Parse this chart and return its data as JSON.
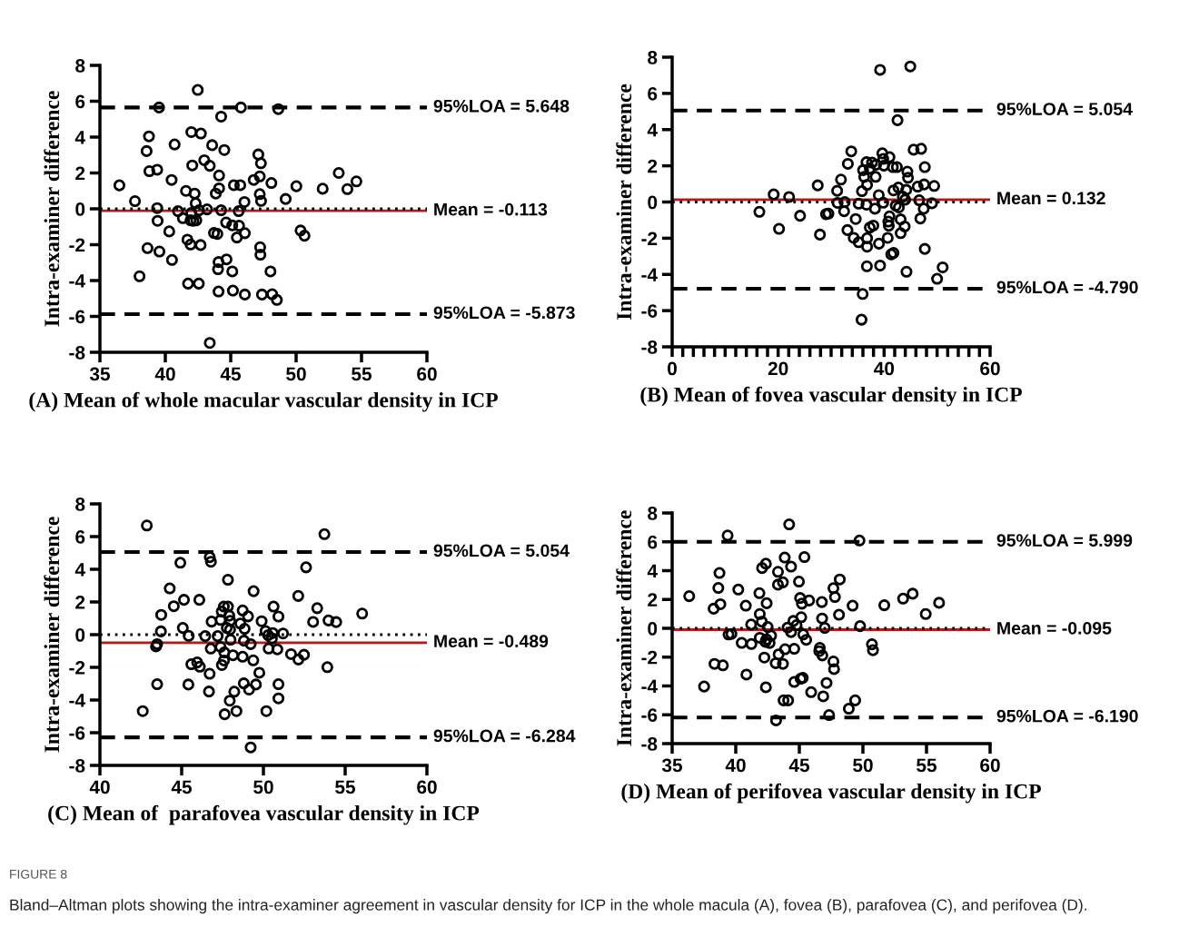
{
  "chart_data": [
    {
      "type": "scatter",
      "xlabel": "(A) Mean of whole macular vascular density in ICP",
      "ylabel": "Intra-examiner difference",
      "xlim": [
        35,
        60
      ],
      "ylim": [
        -8,
        8
      ],
      "xticks": [
        35,
        40,
        45,
        50,
        55,
        60
      ],
      "yticks": [
        -8,
        -6,
        -4,
        -2,
        0,
        2,
        4,
        6,
        8
      ],
      "marker": "circle",
      "grid": false,
      "legend": false,
      "annotations": [
        "FIGURE 8",
        "Bland–Altman plots showing the intra-examiner agreement in vascular density for ICP in the whole macula (A), fovea (B), parafovea (C), and perifovea (D)."
      ],
      "ref_lines": [
        {
          "axis": "y",
          "value": 5.648,
          "label": "95%LOA = 5.648",
          "color": "#000000",
          "line_style": "dashed"
        },
        {
          "axis": "y",
          "value": -0.113,
          "label": "Mean = -0.113",
          "color": "#b01c1c",
          "line_style": "solid"
        },
        {
          "axis": "y",
          "value": 0,
          "label": null,
          "color": "#000000",
          "line_style": "dotted"
        },
        {
          "axis": "y",
          "value": -5.873,
          "label": "95%LOA = -5.873",
          "color": "#000000",
          "line_style": "dashed"
        }
      ],
      "series": [
        {
          "color": "#000000",
          "x": [
            36.49,
            37.68,
            38.03,
            38.64,
            38.75,
            38.57,
            38.78,
            39.38,
            39.52,
            39.55,
            39.38,
            39.41,
            40.3,
            40.51,
            40.48,
            40.71,
            40.97,
            41.34,
            41.58,
            41.69,
            41.93,
            41.74,
            41.99,
            42.06,
            42.24,
            42.32,
            41.93,
            42.14,
            42.37,
            41.99,
            42.48,
            42.58,
            42.72,
            42.7,
            42.56,
            42.98,
            43.19,
            43.4,
            43.58,
            43.4,
            43.72,
            43.98,
            44.11,
            43.86,
            44.11,
            44.27,
            44.27,
            44.51,
            44.07,
            44.03,
            44.07,
            44.68,
            44.65,
            45.12,
            45.12,
            45.17,
            45.24,
            45.73,
            45.64,
            45.47,
            45.61,
            45.78,
            46.05,
            46.08,
            46.08,
            46.76,
            47.11,
            47.31,
            47.22,
            47.22,
            47.32,
            47.25,
            47.27,
            47.39,
            48.11,
            48.04,
            48.17,
            48.53,
            48.64,
            49.2,
            50.02,
            50.34,
            50.64,
            52.03,
            53.26,
            53.92,
            54.61
          ],
          "values": [
            1.31,
            0.43,
            -3.76,
            -2.19,
            4.04,
            3.22,
            2.1,
            2.18,
            5.65,
            -2.38,
            0.04,
            -0.67,
            -1.26,
            -2.85,
            1.61,
            3.59,
            -0.13,
            -0.52,
            1.0,
            -1.72,
            -1.99,
            -4.17,
            4.28,
            2.42,
            0.85,
            0.31,
            -0.64,
            -0.67,
            -0.64,
            -0.23,
            6.63,
            -0.08,
            4.2,
            -2.02,
            -4.17,
            2.71,
            -0.03,
            2.4,
            3.55,
            -7.48,
            -1.35,
            -1.4,
            1.86,
            0.85,
            1.14,
            -0.08,
            5.14,
            3.28,
            -2.97,
            -3.37,
            -4.61,
            -2.82,
            -0.76,
            -0.92,
            -3.49,
            -4.56,
            1.32,
            1.32,
            -0.94,
            -1.6,
            -0.13,
            5.65,
            0.38,
            -1.36,
            -4.78,
            1.61,
            3.03,
            2.54,
            1.81,
            0.82,
            0.44,
            -2.14,
            -2.56,
            -4.78,
            1.44,
            -3.49,
            -4.76,
            -5.08,
            5.56,
            0.55,
            1.26,
            -1.21,
            -1.5,
            1.12,
            2.0,
            1.1,
            1.53
          ]
        }
      ]
    },
    {
      "type": "scatter",
      "xlabel": "(B) Mean of fovea vascular density in ICP",
      "ylabel": "Intra-examiner difference",
      "xlim": [
        0,
        60
      ],
      "ylim": [
        -8,
        8
      ],
      "xticks": [
        0,
        {
          "value": 2,
          "label": null
        },
        {
          "value": 4,
          "label": null
        },
        {
          "value": 6,
          "label": null
        },
        {
          "value": 8,
          "label": null
        },
        {
          "value": 10,
          "label": null
        },
        {
          "value": 12,
          "label": null
        },
        {
          "value": 14,
          "label": null
        },
        {
          "value": 16,
          "label": null
        },
        {
          "value": 18,
          "label": null
        },
        20,
        {
          "value": 22,
          "label": null
        },
        {
          "value": 24,
          "label": null
        },
        {
          "value": 26,
          "label": null
        },
        {
          "value": 28,
          "label": null
        },
        {
          "value": 30,
          "label": null
        },
        {
          "value": 32,
          "label": null
        },
        {
          "value": 34,
          "label": null
        },
        {
          "value": 36,
          "label": null
        },
        {
          "value": 38,
          "label": null
        },
        40,
        {
          "value": 42,
          "label": null
        },
        {
          "value": 44,
          "label": null
        },
        {
          "value": 46,
          "label": null
        },
        {
          "value": 48,
          "label": null
        },
        {
          "value": 50,
          "label": null
        },
        {
          "value": 52,
          "label": null
        },
        {
          "value": 54,
          "label": null
        },
        {
          "value": 56,
          "label": null
        },
        {
          "value": 58,
          "label": null
        },
        60
      ],
      "yticks": [
        -8,
        -6,
        -4,
        -2,
        0,
        2,
        4,
        6,
        8
      ],
      "marker": "circle",
      "grid": false,
      "legend": false,
      "ref_lines": [
        {
          "axis": "y",
          "value": 5.054,
          "label": "95%LOA = 5.054",
          "color": "#000000",
          "line_style": "dashed"
        },
        {
          "axis": "y",
          "value": 0.132,
          "label": "Mean = 0.132",
          "color": "#b01c1c",
          "line_style": "solid"
        },
        {
          "axis": "y",
          "value": 0,
          "label": null,
          "color": "#000000",
          "line_style": "dotted"
        },
        {
          "axis": "y",
          "value": -4.79,
          "label": "95%LOA = -4.790",
          "color": "#000000",
          "line_style": "dashed"
        }
      ],
      "series": [
        {
          "color": "#000000",
          "x": [
            39.24,
            44.94,
            42.53,
            16.46,
            19.16,
            20.17,
            22.07,
            24.14,
            27.47,
            27.89,
            29.03,
            29.49,
            31.14,
            31.86,
            31.22,
            32.57,
            32.45,
            33.16,
            33.8,
            33.08,
            34.26,
            34.64,
            35.19,
            35.19,
            35.82,
            36.03,
            36.24,
            36.67,
            36.79,
            36.67,
            36.79,
            36.79,
            36.75,
            35.95,
            35.74,
            37.3,
            37.72,
            38.48,
            38.4,
            37.3,
            37.97,
            38.27,
            38.99,
            39.03,
            39.24,
            39.66,
            39.83,
            39.96,
            39.83,
            41.01,
            41.65,
            42.41,
            41.01,
            40.8,
            40.89,
            40.68,
            41.35,
            41.77,
            41.77,
            42.7,
            42.19,
            42.78,
            43.12,
            43.12,
            43.88,
            43.54,
            43.97,
            44.18,
            44.39,
            44.51,
            44.22,
            45.57,
            46.99,
            46.33,
            46.62,
            46.84,
            47.47,
            47.68,
            47.55,
            49.03,
            49.45,
            47.68,
            50.0,
            51.05
          ],
          "values": [
            7.3,
            7.49,
            4.52,
            -0.54,
            0.42,
            -1.48,
            0.28,
            -0.76,
            0.92,
            -1.8,
            -0.67,
            -0.64,
            0.62,
            1.24,
            -0.05,
            0.0,
            -0.51,
            2.11,
            2.8,
            -1.55,
            -1.98,
            -0.94,
            -2.22,
            -0.09,
            0.6,
            1.76,
            1.39,
            2.2,
            0.95,
            -0.15,
            -2.0,
            -2.47,
            -3.55,
            -5.08,
            -6.5,
            1.85,
            2.18,
            2.06,
            1.39,
            -1.41,
            -1.3,
            -0.37,
            0.38,
            -2.3,
            -3.51,
            2.69,
            2.38,
            2.01,
            -0.04,
            2.48,
            1.93,
            1.93,
            -0.79,
            -1.08,
            -1.31,
            -1.98,
            -2.89,
            -2.81,
            0.64,
            0.8,
            -0.2,
            -0.3,
            -0.96,
            -1.72,
            -1.35,
            0.3,
            0.13,
            0.67,
            1.68,
            1.34,
            -3.85,
            2.89,
            2.94,
            0.85,
            0.1,
            -0.91,
            -0.37,
            1.93,
            0.97,
            -0.07,
            0.89,
            -2.59,
            -4.24,
            -3.61
          ]
        }
      ]
    },
    {
      "type": "scatter",
      "xlabel": "(C) Mean of  parafovea vascular density in ICP",
      "ylabel": "Intra-examiner difference",
      "xlim": [
        40,
        60
      ],
      "ylim": [
        -8,
        8
      ],
      "xticks": [
        40,
        45,
        50,
        55,
        60
      ],
      "yticks": [
        -8,
        -6,
        -4,
        -2,
        0,
        2,
        4,
        6,
        8
      ],
      "marker": "circle",
      "grid": false,
      "legend": false,
      "ref_lines": [
        {
          "axis": "y",
          "value": 5.054,
          "label": "95%LOA = 5.054",
          "color": "#000000",
          "line_style": "dashed"
        },
        {
          "axis": "y",
          "value": -0.489,
          "label": "Mean = -0.489",
          "color": "#b01c1c",
          "line_style": "solid"
        },
        {
          "axis": "y",
          "value": 0,
          "label": null,
          "color": "#000000",
          "line_style": "dotted"
        },
        {
          "axis": "y",
          "value": -6.284,
          "label": "95%LOA = -6.284",
          "color": "#000000",
          "line_style": "dashed"
        }
      ],
      "series": [
        {
          "color": "#000000",
          "x": [
            42.87,
            53.73,
            44.92,
            46.72,
            46.79,
            52.61,
            47.83,
            44.27,
            49.4,
            45.14,
            46.08,
            52.13,
            44.52,
            43.75,
            53.29,
            56.04,
            53.98,
            54.45,
            53.04,
            50.62,
            50.92,
            49.89,
            48.73,
            49.06,
            48.59,
            48.85,
            47.58,
            47.83,
            47.45,
            47.91,
            47.38,
            47.97,
            47.76,
            47.96,
            46.83,
            45.07,
            43.73,
            45.43,
            46.44,
            47.2,
            47.99,
            48.81,
            50.13,
            50.29,
            50.57,
            50.52,
            51.2,
            43.43,
            43.5,
            49.22,
            46.78,
            47.38,
            50.32,
            50.85,
            47.61,
            48.14,
            48.73,
            47.59,
            47.46,
            49.38,
            51.69,
            52.14,
            52.48,
            45.59,
            45.95,
            46.11,
            53.91,
            46.71,
            49.75,
            43.5,
            45.41,
            46.67,
            48.8,
            49.54,
            49.12,
            48.22,
            50.92,
            50.92,
            47.94,
            42.62,
            47.63,
            48.35,
            50.18,
            49.22
          ],
          "values": [
            6.68,
            6.15,
            4.4,
            4.74,
            4.46,
            4.12,
            3.36,
            2.83,
            2.66,
            2.13,
            2.13,
            2.37,
            1.74,
            1.21,
            1.62,
            1.29,
            0.87,
            0.77,
            0.78,
            1.72,
            1.11,
            0.82,
            1.48,
            1.12,
            0.68,
            0.36,
            1.72,
            1.72,
            1.41,
            1.16,
            0.9,
            0.85,
            0.41,
            0.31,
            0.8,
            0.41,
            0.2,
            -0.07,
            -0.09,
            -0.09,
            -0.31,
            -0.37,
            0.22,
            -0.03,
            0.1,
            -0.24,
            0.07,
            -0.72,
            -0.58,
            -0.58,
            -0.85,
            -0.75,
            -0.85,
            -0.9,
            -1.09,
            -1.26,
            -1.35,
            -1.58,
            -1.86,
            -1.57,
            -1.19,
            -1.52,
            -1.23,
            -1.81,
            -1.7,
            -1.96,
            -1.99,
            -2.39,
            -2.33,
            -3.03,
            -3.05,
            -3.48,
            -2.98,
            -3.05,
            -3.36,
            -3.49,
            -3.03,
            -3.9,
            -4.04,
            -4.68,
            -4.87,
            -4.68,
            -4.68,
            -6.9
          ]
        }
      ]
    },
    {
      "type": "scatter",
      "xlabel": "(D) Mean of perifovea vascular density in ICP",
      "ylabel": "Intra-examiner difference",
      "xlim": [
        35,
        60
      ],
      "ylim": [
        -8,
        8
      ],
      "xticks": [
        35,
        40,
        45,
        50,
        55,
        60
      ],
      "yticks": [
        -8,
        -6,
        -4,
        -2,
        0,
        2,
        4,
        6,
        8
      ],
      "marker": "circle",
      "grid": false,
      "legend": false,
      "ref_lines": [
        {
          "axis": "y",
          "value": 5.999,
          "label": "95%LOA = 5.999",
          "color": "#000000",
          "line_style": "dashed"
        },
        {
          "axis": "y",
          "value": -0.095,
          "label": "Mean = -0.095",
          "color": "#b01c1c",
          "line_style": "solid"
        },
        {
          "axis": "y",
          "value": 0,
          "label": null,
          "color": "#000000",
          "line_style": "dotted"
        },
        {
          "axis": "y",
          "value": -6.19,
          "label": "95%LOA = -6.190",
          "color": "#000000",
          "line_style": "dashed"
        }
      ],
      "series": [
        {
          "color": "#000000",
          "x": [
            39.36,
            44.2,
            49.73,
            36.34,
            37.51,
            38.26,
            38.63,
            38.72,
            38.79,
            38.33,
            38.99,
            39.43,
            39.66,
            40.2,
            40.47,
            40.79,
            40.84,
            41.21,
            41.23,
            41.86,
            41.89,
            42.05,
            41.89,
            42.07,
            42.37,
            42.43,
            42.25,
            42.37,
            42.51,
            42.33,
            42.42,
            42.66,
            42.78,
            43.14,
            43.32,
            43.32,
            43.37,
            43.71,
            43.71,
            43.76,
            44.12,
            43.85,
            43.88,
            44.08,
            44.35,
            44.35,
            44.53,
            44.6,
            44.78,
            44.6,
            44.97,
            45.06,
            45.15,
            45.2,
            45.1,
            45.27,
            45.31,
            45.54,
            45.4,
            45.77,
            45.93,
            46.61,
            46.57,
            46.81,
            46.77,
            46.79,
            47.0,
            46.88,
            47.14,
            47.34,
            47.68,
            47.8,
            47.68,
            47.73,
            48.12,
            48.18,
            48.89,
            49.19,
            49.39,
            49.78,
            50.71,
            50.79,
            51.68,
            53.16,
            53.91,
            54.94,
            55.99,
            43.17
          ],
          "values": [
            6.44,
            7.21,
            6.09,
            2.23,
            -4.04,
            1.36,
            2.8,
            3.84,
            1.67,
            -2.47,
            -2.57,
            -0.43,
            -0.39,
            2.69,
            -1.01,
            1.57,
            -3.21,
            0.26,
            -1.09,
            2.44,
            0.99,
            0.46,
            -0.66,
            4.18,
            4.48,
            1.74,
            -2.03,
            -4.09,
            0.09,
            -0.94,
            -0.77,
            -1.02,
            -0.51,
            -2.42,
            3.92,
            3.03,
            -1.81,
            -2.47,
            3.19,
            -5.0,
            -5.0,
            4.91,
            -1.45,
            0.05,
            4.28,
            -0.26,
            0.51,
            -1.42,
            0.22,
            -3.72,
            3.24,
            2.1,
            0.77,
            1.71,
            -3.5,
            -3.44,
            -0.43,
            -0.8,
            4.94,
            1.93,
            -4.43,
            -1.36,
            -1.59,
            -1.88,
            1.82,
            0.68,
            0.03,
            -4.72,
            -3.79,
            -6.02,
            2.78,
            2.17,
            -2.3,
            -2.83,
            0.94,
            3.39,
            -5.58,
            1.57,
            -5.0,
            0.15,
            -1.11,
            -1.52,
            1.6,
            2.06,
            2.4,
            0.99,
            1.77,
            -6.39
          ]
        }
      ]
    }
  ]
}
